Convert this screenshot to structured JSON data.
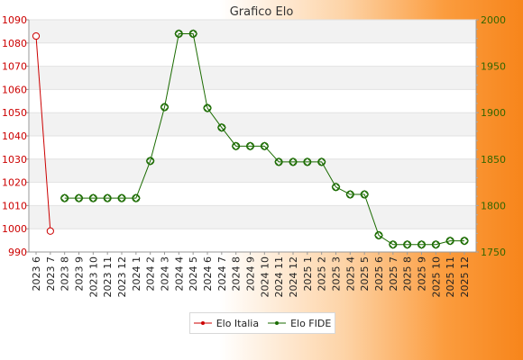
{
  "chart_data": {
    "type": "line",
    "title": "Grafico Elo",
    "categories": [
      "2023 6",
      "2023 7",
      "2023 8",
      "2023 9",
      "2023 10",
      "2023 11",
      "2023 12",
      "2024 1",
      "2024 2",
      "2024 3",
      "2024 4",
      "2024 5",
      "2024 6",
      "2024 7",
      "2024 8",
      "2024 9",
      "2024 10",
      "2024 11",
      "2024 12",
      "2025 1",
      "2025 2",
      "2025 3",
      "2025 4",
      "2025 5",
      "2025 6",
      "2025 7",
      "2025 8",
      "2025 9",
      "2025 10",
      "2025 11",
      "2025 12"
    ],
    "y_left": {
      "min": 990,
      "max": 1090,
      "ticks": [
        "990",
        "1000",
        "1010",
        "1020",
        "1030",
        "1040",
        "1050",
        "1060",
        "1070",
        "1080",
        "1090"
      ]
    },
    "y_right": {
      "min": 1750,
      "max": 2000,
      "ticks": [
        "1750",
        "1800",
        "1850",
        "1900",
        "1950",
        "2000"
      ]
    },
    "grid": true,
    "legend_position": "bottom",
    "series": [
      {
        "name": "Elo Italia",
        "axis": "left",
        "color": "#cc0000",
        "marker": "circle",
        "values": [
          1083,
          999,
          null,
          null,
          null,
          null,
          null,
          null,
          null,
          null,
          null,
          null,
          null,
          null,
          null,
          null,
          null,
          null,
          null,
          null,
          null,
          null,
          null,
          null,
          null,
          null,
          null,
          null,
          null,
          null,
          null
        ]
      },
      {
        "name": "Elo FIDE",
        "axis": "right",
        "color": "#1a6b00",
        "marker": "diamond",
        "values": [
          null,
          null,
          1808,
          1808,
          1808,
          1808,
          1808,
          1808,
          1848,
          1906,
          1985,
          1985,
          1905,
          1884,
          1864,
          1864,
          1864,
          1847,
          1847,
          1847,
          1847,
          1820,
          1812,
          1812,
          1768,
          1758,
          1758,
          1758,
          1758,
          1762,
          1762
        ]
      }
    ]
  }
}
